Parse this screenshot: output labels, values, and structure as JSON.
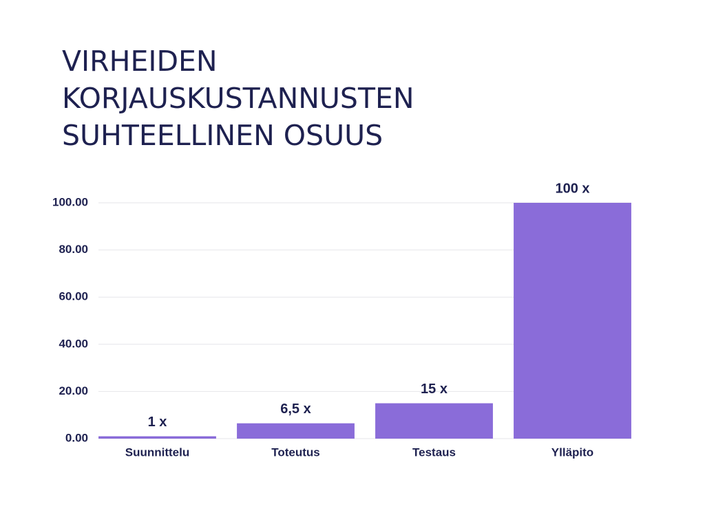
{
  "chart_data": {
    "type": "bar",
    "title": "VIRHEIDEN KORJAUSKUSTANNUSTEN SUHTEELLINEN OSUUS",
    "categories": [
      "Suunnittelu",
      "Toteutus",
      "Testaus",
      "Ylläpito"
    ],
    "values": [
      1,
      6.5,
      15,
      100
    ],
    "value_labels": [
      "1 x",
      "6,5 x",
      "15 x",
      "100 x"
    ],
    "color": "#8a6cd9",
    "ylim": [
      0,
      100
    ],
    "yticks": [
      {
        "value": 0,
        "label": "0.00"
      },
      {
        "value": 20,
        "label": "20.00"
      },
      {
        "value": 40,
        "label": "40.00"
      },
      {
        "value": 60,
        "label": "60.00"
      },
      {
        "value": 80,
        "label": "80.00"
      },
      {
        "value": 100,
        "label": "100.00"
      }
    ],
    "grid": true
  }
}
